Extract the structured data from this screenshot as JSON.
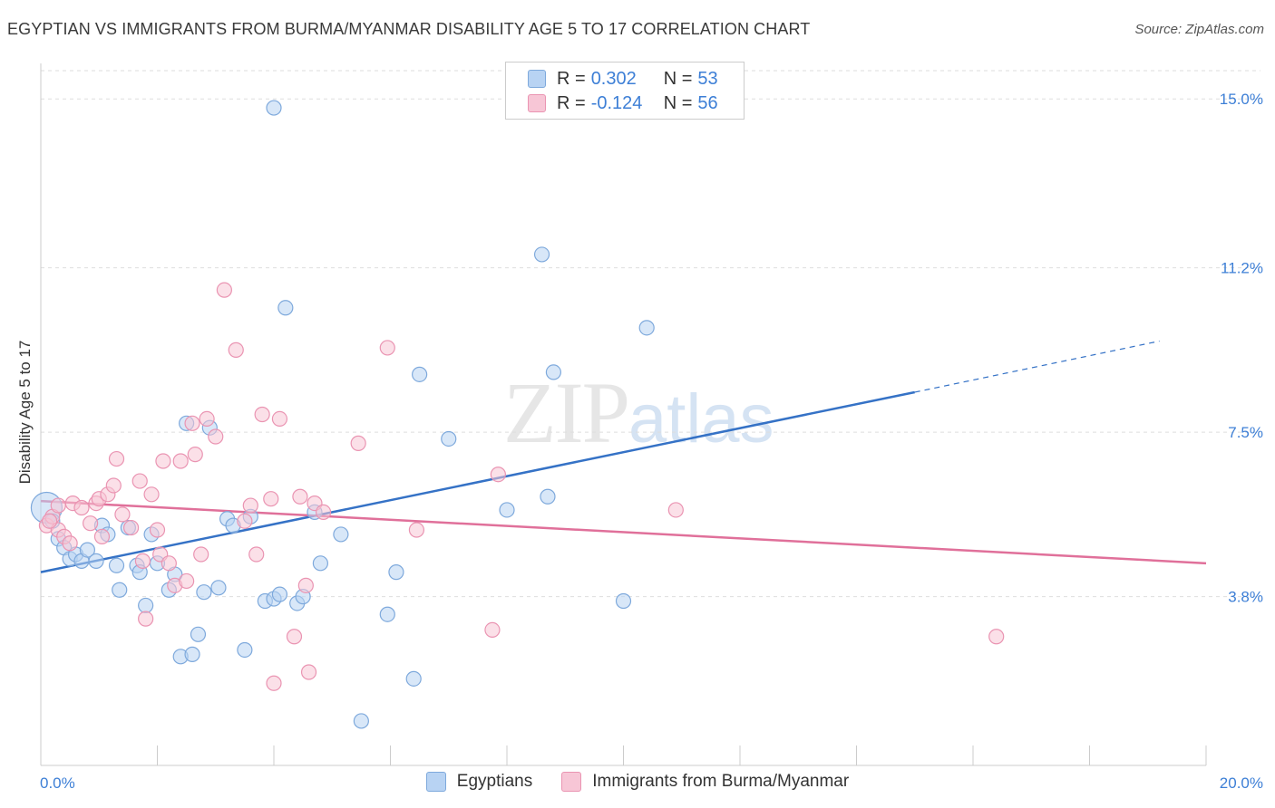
{
  "header": {
    "title": "EGYPTIAN VS IMMIGRANTS FROM BURMA/MYANMAR DISABILITY AGE 5 TO 17 CORRELATION CHART",
    "source": "Source: ZipAtlas.com"
  },
  "watermark": {
    "zip": "ZIP",
    "atlas": "atlas"
  },
  "colors": {
    "blue_fill": "#b8d3f3",
    "blue_stroke": "#7ea9dc",
    "blue_line": "#3572c6",
    "pink_fill": "#f7c6d6",
    "pink_stroke": "#ea94b2",
    "pink_line": "#e0709a",
    "tick_label": "#3d7fd6",
    "grid": "#dedede"
  },
  "legend": {
    "row1": {
      "r_label": "R =",
      "r_value": "0.302",
      "n_label": "N =",
      "n_value": "53"
    },
    "row2": {
      "r_label": "R =",
      "r_value": "-0.124",
      "n_label": "N =",
      "n_value": "56"
    }
  },
  "bottom_legend": {
    "series1": "Egyptians",
    "series2": "Immigrants from Burma/Myanmar"
  },
  "chart_data": {
    "type": "scatter",
    "ylabel": "Disability Age 5 to 17",
    "xlim": [
      0,
      20
    ],
    "ylim": [
      0,
      15.8
    ],
    "x_tick_labels": {
      "min": "0.0%",
      "max": "20.0%"
    },
    "y_ticks": [
      {
        "value": 3.8,
        "label": "3.8%"
      },
      {
        "value": 7.5,
        "label": "7.5%"
      },
      {
        "value": 11.2,
        "label": "11.2%"
      },
      {
        "value": 15.0,
        "label": "15.0%"
      }
    ],
    "grid": true,
    "legend_position": "top-center",
    "series": [
      {
        "name": "Egyptians",
        "color": "#b8d3f3",
        "trend": {
          "x0": 0,
          "y0": 4.35,
          "x1": 15.0,
          "y1": 8.4,
          "dash_to_x": 19.2,
          "dash_to_y": 9.55
        },
        "points": [
          [
            0.1,
            5.8
          ],
          [
            0.2,
            5.5
          ],
          [
            0.3,
            5.1
          ],
          [
            0.4,
            4.9
          ],
          [
            0.5,
            4.65
          ],
          [
            0.6,
            4.75
          ],
          [
            0.7,
            4.6
          ],
          [
            0.8,
            4.85
          ],
          [
            0.95,
            4.6
          ],
          [
            1.05,
            5.4
          ],
          [
            1.15,
            5.2
          ],
          [
            1.3,
            4.5
          ],
          [
            1.35,
            3.95
          ],
          [
            1.5,
            5.35
          ],
          [
            1.65,
            4.5
          ],
          [
            1.7,
            4.35
          ],
          [
            1.8,
            3.6
          ],
          [
            1.9,
            5.2
          ],
          [
            2.0,
            4.55
          ],
          [
            2.2,
            3.95
          ],
          [
            2.3,
            4.3
          ],
          [
            2.4,
            2.45
          ],
          [
            2.5,
            7.7
          ],
          [
            2.6,
            2.5
          ],
          [
            2.7,
            2.95
          ],
          [
            2.8,
            3.9
          ],
          [
            2.9,
            7.6
          ],
          [
            3.05,
            4.0
          ],
          [
            3.2,
            5.55
          ],
          [
            3.3,
            5.4
          ],
          [
            3.5,
            2.6
          ],
          [
            3.6,
            5.6
          ],
          [
            3.85,
            3.7
          ],
          [
            4.0,
            3.75
          ],
          [
            4.1,
            3.85
          ],
          [
            4.2,
            10.3
          ],
          [
            4.4,
            3.65
          ],
          [
            4.5,
            3.8
          ],
          [
            4.7,
            5.7
          ],
          [
            4.8,
            4.55
          ],
          [
            5.15,
            5.2
          ],
          [
            5.5,
            1.0
          ],
          [
            5.95,
            3.4
          ],
          [
            6.1,
            4.35
          ],
          [
            6.4,
            1.95
          ],
          [
            6.5,
            8.8
          ],
          [
            7.0,
            7.35
          ],
          [
            8.0,
            5.75
          ],
          [
            8.6,
            11.5
          ],
          [
            8.7,
            6.05
          ],
          [
            8.8,
            8.85
          ],
          [
            10.0,
            3.7
          ],
          [
            10.4,
            9.85
          ],
          [
            4.0,
            14.8
          ]
        ]
      },
      {
        "name": "Immigrants from Burma/Myanmar",
        "color": "#f7c6d6",
        "trend": {
          "x0": 0,
          "y0": 5.95,
          "x1": 20.0,
          "y1": 4.55
        },
        "points": [
          [
            0.1,
            5.4
          ],
          [
            0.2,
            5.6
          ],
          [
            0.3,
            5.3
          ],
          [
            0.4,
            5.15
          ],
          [
            0.5,
            5.0
          ],
          [
            0.55,
            5.9
          ],
          [
            0.7,
            5.8
          ],
          [
            0.85,
            5.45
          ],
          [
            0.95,
            5.9
          ],
          [
            1.0,
            6.0
          ],
          [
            1.05,
            5.15
          ],
          [
            1.15,
            6.1
          ],
          [
            1.25,
            6.3
          ],
          [
            1.3,
            6.9
          ],
          [
            1.4,
            5.65
          ],
          [
            1.55,
            5.35
          ],
          [
            1.7,
            6.4
          ],
          [
            1.75,
            4.6
          ],
          [
            1.8,
            3.3
          ],
          [
            1.9,
            6.1
          ],
          [
            2.0,
            5.3
          ],
          [
            2.05,
            4.75
          ],
          [
            2.1,
            6.85
          ],
          [
            2.2,
            4.55
          ],
          [
            2.3,
            4.05
          ],
          [
            2.4,
            6.85
          ],
          [
            2.5,
            4.15
          ],
          [
            2.6,
            7.7
          ],
          [
            2.65,
            7.0
          ],
          [
            2.75,
            4.75
          ],
          [
            2.85,
            7.8
          ],
          [
            3.0,
            7.4
          ],
          [
            3.15,
            10.7
          ],
          [
            3.35,
            9.35
          ],
          [
            3.5,
            5.5
          ],
          [
            3.6,
            5.85
          ],
          [
            3.7,
            4.75
          ],
          [
            3.8,
            7.9
          ],
          [
            3.95,
            6.0
          ],
          [
            4.0,
            1.85
          ],
          [
            4.1,
            7.8
          ],
          [
            4.35,
            2.9
          ],
          [
            4.45,
            6.05
          ],
          [
            4.55,
            4.05
          ],
          [
            4.6,
            2.1
          ],
          [
            4.7,
            5.9
          ],
          [
            4.85,
            5.7
          ],
          [
            5.45,
            7.25
          ],
          [
            5.95,
            9.4
          ],
          [
            6.45,
            5.3
          ],
          [
            7.75,
            3.05
          ],
          [
            7.85,
            6.55
          ],
          [
            10.9,
            5.75
          ],
          [
            16.4,
            2.9
          ],
          [
            0.15,
            5.5
          ],
          [
            0.3,
            5.85
          ]
        ]
      }
    ]
  }
}
